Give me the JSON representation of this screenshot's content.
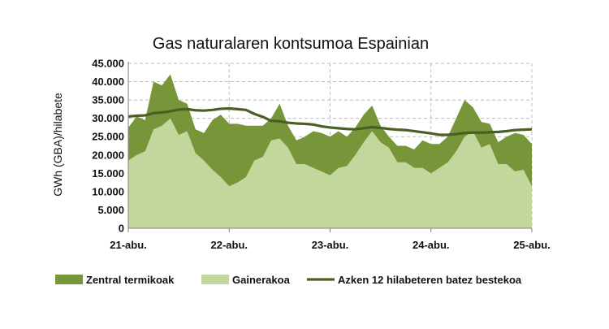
{
  "chart_data": {
    "type": "area",
    "title": "Gas naturalaren kontsumoa Espainian",
    "ylabel": "GWh (GBA)/hilabete",
    "xlabel": "",
    "ylim": [
      0,
      45000
    ],
    "y_ticks": [
      "0",
      "5.000",
      "10.000",
      "15.000",
      "20.000",
      "25.000",
      "30.000",
      "35.000",
      "40.000",
      "45.000"
    ],
    "x_tick_labels": [
      "21-abu.",
      "22-abu.",
      "23-abu.",
      "24-abu.",
      "25-abu."
    ],
    "grid": true,
    "legend_position": "bottom",
    "colors": {
      "total": "#77963a",
      "other": "#c3d69b",
      "average": "#4a5f24"
    },
    "x": [
      0,
      1,
      2,
      3,
      4,
      5,
      6,
      7,
      8,
      9,
      10,
      11,
      12,
      13,
      14,
      15,
      16,
      17,
      18,
      19,
      20,
      21,
      22,
      23,
      24,
      25,
      26,
      27,
      28,
      29,
      30,
      31,
      32,
      33,
      34,
      35,
      36,
      37,
      38,
      39,
      40,
      41,
      42,
      43,
      44,
      45,
      46,
      47,
      48
    ],
    "series": [
      {
        "name": "Zentral termikoak",
        "values": [
          27500,
          30500,
          29500,
          40000,
          39000,
          42000,
          35000,
          34000,
          27000,
          26000,
          29500,
          31000,
          28500,
          28500,
          28000,
          28000,
          28000,
          30000,
          34000,
          28000,
          24000,
          25000,
          26500,
          26000,
          25000,
          26500,
          25000,
          27500,
          31000,
          33500,
          28000,
          25000,
          22500,
          22500,
          21500,
          24000,
          23000,
          23000,
          25000,
          30000,
          35000,
          33000,
          29000,
          28500,
          23500,
          25000,
          26000,
          25500,
          23000
        ]
      },
      {
        "name": "Gainerakoa",
        "values": [
          18500,
          20000,
          21000,
          27000,
          28000,
          30000,
          25500,
          26500,
          20500,
          18500,
          16000,
          14000,
          11500,
          12500,
          14000,
          18500,
          19500,
          24000,
          24500,
          22000,
          17500,
          17500,
          16500,
          15500,
          14500,
          16500,
          17000,
          20000,
          23500,
          26500,
          23500,
          22000,
          18000,
          18000,
          16500,
          16500,
          15000,
          16500,
          18000,
          21000,
          25000,
          26500,
          22000,
          23000,
          17500,
          17500,
          15500,
          16000,
          11500
        ]
      },
      {
        "name": "Azken 12 hilabeteren batez bestekoa",
        "values": [
          30500,
          30700,
          30800,
          31400,
          31600,
          31900,
          32400,
          32500,
          32200,
          32100,
          32300,
          32600,
          32700,
          32500,
          32300,
          31200,
          30400,
          29300,
          29200,
          28800,
          28600,
          28500,
          28300,
          27800,
          27500,
          27300,
          27100,
          27000,
          27300,
          27600,
          27400,
          27100,
          26900,
          26800,
          26500,
          26200,
          25900,
          25500,
          25500,
          25700,
          26000,
          26100,
          26100,
          26200,
          26300,
          26500,
          26800,
          26900,
          27000
        ]
      }
    ]
  }
}
